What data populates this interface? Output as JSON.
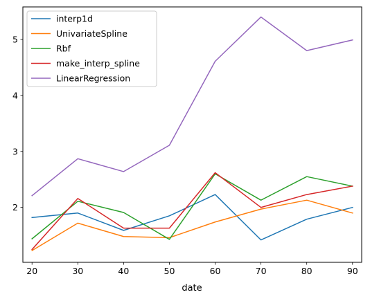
{
  "chart_data": {
    "type": "line",
    "xlabel": "date",
    "ylabel": "",
    "title": "",
    "x": [
      20,
      30,
      40,
      50,
      60,
      70,
      80,
      90
    ],
    "xlim": [
      18,
      92
    ],
    "ylim": [
      1.02,
      5.58
    ],
    "xticks": [
      20,
      30,
      40,
      50,
      60,
      70,
      80,
      90
    ],
    "yticks": [
      2,
      3,
      4,
      5
    ],
    "grid": false,
    "legend_position": "upper-left",
    "series": [
      {
        "name": "interp1d",
        "color": "#1f77b4",
        "values": [
          1.82,
          1.9,
          1.59,
          1.85,
          2.23,
          1.42,
          1.79,
          2.0
        ]
      },
      {
        "name": "UnivariateSpline",
        "color": "#ff7f0e",
        "values": [
          1.23,
          1.72,
          1.48,
          1.46,
          1.74,
          1.97,
          2.13,
          1.9
        ]
      },
      {
        "name": "Rbf",
        "color": "#2ca02c",
        "values": [
          1.44,
          2.11,
          1.91,
          1.43,
          2.6,
          2.13,
          2.55,
          2.38
        ]
      },
      {
        "name": "make_interp_spline",
        "color": "#d62728",
        "values": [
          1.25,
          2.16,
          1.63,
          1.63,
          2.62,
          2.0,
          2.23,
          2.38
        ]
      },
      {
        "name": "LinearRegression",
        "color": "#9467bd",
        "values": [
          2.21,
          2.87,
          2.64,
          3.11,
          4.61,
          5.4,
          4.8,
          4.99
        ]
      }
    ]
  }
}
